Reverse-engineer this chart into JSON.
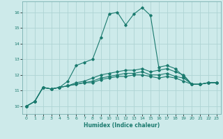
{
  "title": "",
  "xlabel": "Humidex (Indice chaleur)",
  "ylabel": "",
  "bg_color": "#cdeaea",
  "grid_color": "#aed4d4",
  "line_color": "#1a7a6e",
  "spine_color": "#7ab0b0",
  "xlim": [
    -0.5,
    23.5
  ],
  "ylim": [
    9.5,
    16.7
  ],
  "yticks": [
    10,
    11,
    12,
    13,
    14,
    15,
    16
  ],
  "xticks": [
    0,
    1,
    2,
    3,
    4,
    5,
    6,
    7,
    8,
    9,
    10,
    11,
    12,
    13,
    14,
    15,
    16,
    17,
    18,
    19,
    20,
    21,
    22,
    23
  ],
  "series": [
    [
      10.0,
      10.3,
      11.2,
      11.1,
      11.2,
      11.6,
      12.6,
      12.8,
      13.0,
      14.4,
      15.9,
      16.0,
      15.2,
      15.9,
      16.3,
      15.8,
      12.5,
      12.6,
      12.4,
      11.9,
      11.4,
      11.4,
      11.5,
      11.5
    ],
    [
      10.0,
      10.3,
      11.2,
      11.1,
      11.2,
      11.3,
      11.5,
      11.6,
      11.8,
      12.0,
      12.1,
      12.2,
      12.3,
      12.3,
      12.4,
      12.2,
      12.3,
      12.4,
      12.2,
      12.0,
      11.4,
      11.4,
      11.5,
      11.5
    ],
    [
      10.0,
      10.3,
      11.2,
      11.1,
      11.2,
      11.3,
      11.4,
      11.5,
      11.6,
      11.8,
      11.9,
      12.0,
      12.1,
      12.1,
      12.2,
      12.0,
      12.0,
      12.1,
      11.9,
      11.8,
      11.4,
      11.4,
      11.5,
      11.5
    ],
    [
      10.0,
      10.3,
      11.2,
      11.1,
      11.2,
      11.3,
      11.4,
      11.5,
      11.5,
      11.7,
      11.8,
      11.9,
      11.9,
      12.0,
      12.0,
      11.9,
      11.8,
      11.9,
      11.8,
      11.6,
      11.4,
      11.4,
      11.5,
      11.5
    ]
  ]
}
